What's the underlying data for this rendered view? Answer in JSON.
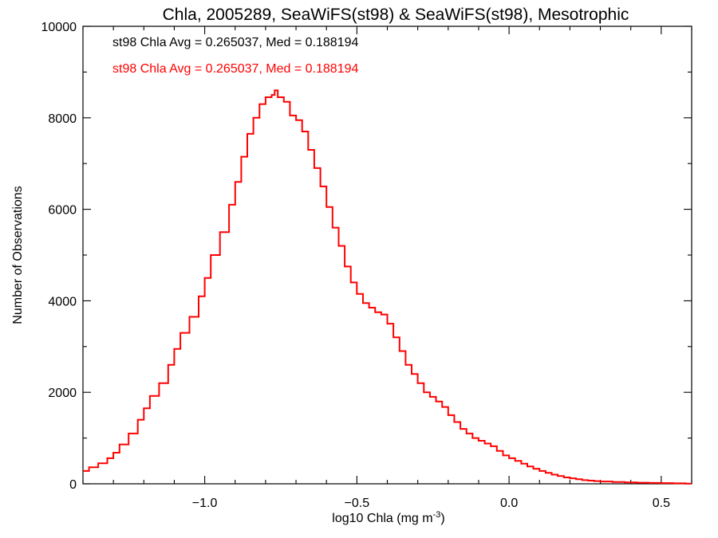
{
  "chart_data": {
    "type": "line",
    "title": "Chla, 2005289, SeaWiFS(st98) & SeaWiFS(st98), Mesotrophic",
    "xlabel": "log10 Chla (mg m",
    "xlabel_sup": "-3",
    "xlabel_tail": ")",
    "ylabel": "Number of Observations",
    "xlim": [
      -1.4,
      0.6
    ],
    "ylim": [
      0,
      10000
    ],
    "x_ticks": [
      -1.0,
      -0.5,
      0.0,
      0.5
    ],
    "x_tick_labels": [
      "−1.0",
      "−0.5",
      "0.0",
      "0.5"
    ],
    "y_ticks": [
      0,
      2000,
      4000,
      6000,
      8000,
      10000
    ],
    "y_tick_labels": [
      "0",
      "2000",
      "4000",
      "6000",
      "8000",
      "10000"
    ],
    "grid": false,
    "legend_position": "top-left",
    "annotations": [
      {
        "text": "st98 Chla Avg = 0.265037, Med = 0.188194",
        "color": "#000000"
      },
      {
        "text": "st98 Chla Avg = 0.265037, Med = 0.188194",
        "color": "#ff0000"
      }
    ],
    "series": [
      {
        "color": "#ff0000",
        "step": true,
        "points": [
          [
            -1.4,
            280
          ],
          [
            -1.38,
            360
          ],
          [
            -1.35,
            450
          ],
          [
            -1.32,
            560
          ],
          [
            -1.3,
            680
          ],
          [
            -1.28,
            860
          ],
          [
            -1.25,
            1100
          ],
          [
            -1.22,
            1400
          ],
          [
            -1.2,
            1650
          ],
          [
            -1.18,
            1920
          ],
          [
            -1.15,
            2200
          ],
          [
            -1.12,
            2600
          ],
          [
            -1.1,
            2950
          ],
          [
            -1.08,
            3300
          ],
          [
            -1.05,
            3650
          ],
          [
            -1.02,
            4100
          ],
          [
            -1.0,
            4500
          ],
          [
            -0.98,
            5000
          ],
          [
            -0.95,
            5500
          ],
          [
            -0.92,
            6100
          ],
          [
            -0.9,
            6600
          ],
          [
            -0.88,
            7150
          ],
          [
            -0.86,
            7650
          ],
          [
            -0.84,
            8000
          ],
          [
            -0.82,
            8300
          ],
          [
            -0.8,
            8450
          ],
          [
            -0.78,
            8500
          ],
          [
            -0.77,
            8600
          ],
          [
            -0.76,
            8450
          ],
          [
            -0.74,
            8350
          ],
          [
            -0.72,
            8050
          ],
          [
            -0.7,
            7950
          ],
          [
            -0.68,
            7700
          ],
          [
            -0.66,
            7300
          ],
          [
            -0.64,
            6900
          ],
          [
            -0.62,
            6500
          ],
          [
            -0.6,
            6050
          ],
          [
            -0.58,
            5600
          ],
          [
            -0.56,
            5200
          ],
          [
            -0.54,
            4750
          ],
          [
            -0.52,
            4400
          ],
          [
            -0.5,
            4150
          ],
          [
            -0.48,
            3950
          ],
          [
            -0.46,
            3850
          ],
          [
            -0.44,
            3750
          ],
          [
            -0.42,
            3700
          ],
          [
            -0.4,
            3500
          ],
          [
            -0.38,
            3200
          ],
          [
            -0.36,
            2900
          ],
          [
            -0.34,
            2600
          ],
          [
            -0.32,
            2400
          ],
          [
            -0.3,
            2200
          ],
          [
            -0.28,
            2000
          ],
          [
            -0.26,
            1900
          ],
          [
            -0.24,
            1800
          ],
          [
            -0.22,
            1680
          ],
          [
            -0.2,
            1500
          ],
          [
            -0.18,
            1350
          ],
          [
            -0.16,
            1200
          ],
          [
            -0.14,
            1100
          ],
          [
            -0.12,
            1000
          ],
          [
            -0.1,
            940
          ],
          [
            -0.08,
            880
          ],
          [
            -0.06,
            820
          ],
          [
            -0.04,
            720
          ],
          [
            -0.02,
            620
          ],
          [
            0.0,
            560
          ],
          [
            0.02,
            500
          ],
          [
            0.04,
            440
          ],
          [
            0.06,
            380
          ],
          [
            0.08,
            330
          ],
          [
            0.1,
            280
          ],
          [
            0.12,
            240
          ],
          [
            0.14,
            200
          ],
          [
            0.16,
            170
          ],
          [
            0.18,
            140
          ],
          [
            0.2,
            120
          ],
          [
            0.22,
            100
          ],
          [
            0.24,
            80
          ],
          [
            0.26,
            70
          ],
          [
            0.28,
            60
          ],
          [
            0.3,
            50
          ],
          [
            0.34,
            40
          ],
          [
            0.38,
            30
          ],
          [
            0.42,
            25
          ],
          [
            0.46,
            20
          ],
          [
            0.5,
            15
          ],
          [
            0.54,
            10
          ],
          [
            0.58,
            5
          ],
          [
            0.6,
            5
          ]
        ]
      }
    ]
  }
}
